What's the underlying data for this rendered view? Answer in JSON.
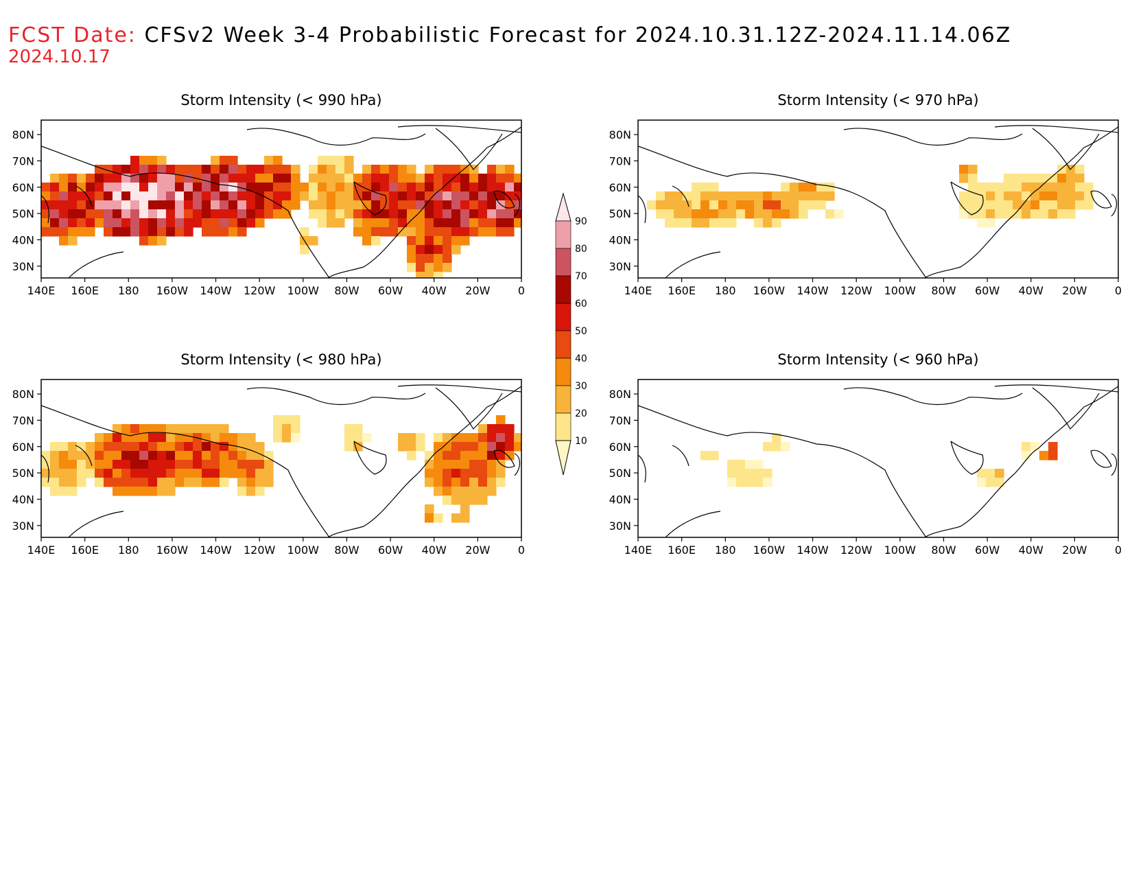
{
  "header": {
    "fcst_label": "FCST Date:",
    "title": "CFSv2 Week 3-4 Probabilistic Forecast for 2024.10.31.12Z-2024.11.14.06Z",
    "fcst_date": "2024.10.17"
  },
  "lon_ticks": [
    "140E",
    "160E",
    "180",
    "160W",
    "140W",
    "120W",
    "100W",
    "80W",
    "60W",
    "40W",
    "20W",
    "0"
  ],
  "lat_ticks": [
    "80N",
    "70N",
    "60N",
    "50N",
    "40N",
    "30N"
  ],
  "colorbar": {
    "levels": [
      "10",
      "20",
      "30",
      "40",
      "50",
      "60",
      "70",
      "80",
      "90"
    ],
    "colors": [
      "#fff6c4",
      "#fde58a",
      "#f8b33a",
      "#f58a0c",
      "#e84a10",
      "#d8160a",
      "#a80800",
      "#cc5360",
      "#eea0aa",
      "#fde7ea"
    ]
  },
  "panels": [
    {
      "id": "p990",
      "title": "Storm Intensity (< 990 hPa)"
    },
    {
      "id": "p970",
      "title": "Storm Intensity (< 970 hPa)"
    },
    {
      "id": "p980",
      "title": "Storm Intensity (< 980 hPa)"
    },
    {
      "id": "p960",
      "title": "Storm Intensity (< 960 hPa)"
    }
  ]
}
